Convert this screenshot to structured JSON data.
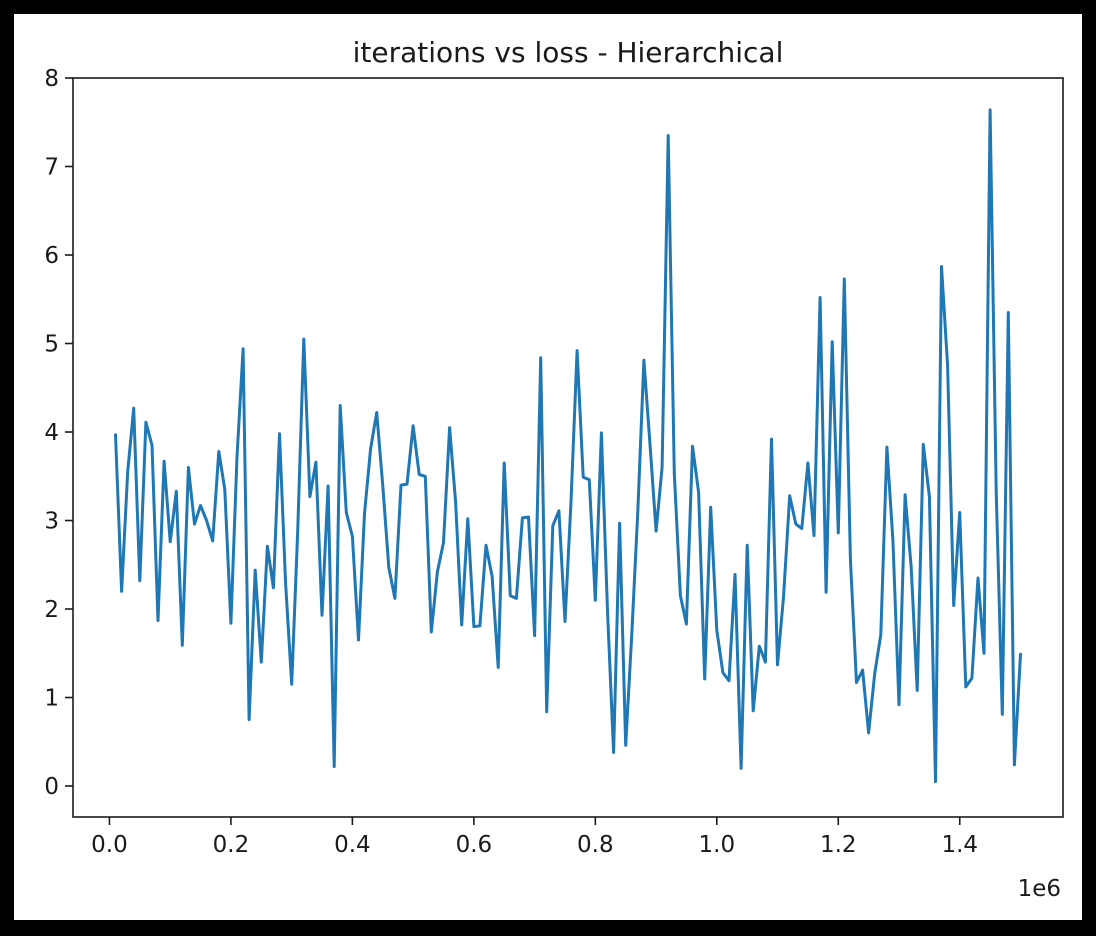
{
  "chart_data": {
    "type": "line",
    "title": "iterations vs loss - Hierarchical",
    "xlabel": "",
    "ylabel": "",
    "x_offset_label": "1e6",
    "xlim": [
      -60000,
      1570000
    ],
    "ylim": [
      -0.35,
      8.0
    ],
    "xticks": [
      0,
      200000,
      400000,
      600000,
      800000,
      1000000,
      1200000,
      1400000
    ],
    "xtick_labels": [
      "0.0",
      "0.2",
      "0.4",
      "0.6",
      "0.8",
      "1.0",
      "1.2",
      "1.4"
    ],
    "yticks": [
      0,
      1,
      2,
      3,
      4,
      5,
      6,
      7,
      8
    ],
    "ytick_labels": [
      "0",
      "1",
      "2",
      "3",
      "4",
      "5",
      "6",
      "7",
      "8"
    ],
    "grid": false,
    "legend": "none",
    "series_color": "#1f77b4",
    "series": [
      {
        "x": [
          10000,
          20000,
          30000,
          40000,
          50000,
          60000,
          70000,
          80000,
          90000,
          100000,
          110000,
          120000,
          130000,
          140000,
          150000,
          160000,
          170000,
          180000,
          190000,
          200000,
          210000,
          220000,
          230000,
          240000,
          250000,
          260000,
          270000,
          280000,
          290000,
          300000,
          310000,
          320000,
          330000,
          340000,
          350000,
          360000,
          370000,
          380000,
          390000,
          400000,
          410000,
          420000,
          430000,
          440000,
          450000,
          460000,
          470000,
          480000,
          490000,
          500000,
          510000,
          520000,
          530000,
          540000,
          550000,
          560000,
          570000,
          580000,
          590000,
          600000,
          610000,
          620000,
          630000,
          640000,
          650000,
          660000,
          670000,
          680000,
          690000,
          700000,
          710000,
          720000,
          730000,
          740000,
          750000,
          760000,
          770000,
          780000,
          790000,
          800000,
          810000,
          820000,
          830000,
          840000,
          850000,
          860000,
          870000,
          880000,
          890000,
          900000,
          910000,
          920000,
          930000,
          940000,
          950000,
          960000,
          970000,
          980000,
          990000,
          1000000,
          1010000,
          1020000,
          1030000,
          1040000,
          1050000,
          1060000,
          1070000,
          1080000,
          1090000,
          1100000,
          1110000,
          1120000,
          1130000,
          1140000,
          1150000,
          1160000,
          1170000,
          1180000,
          1190000,
          1200000,
          1210000,
          1220000,
          1230000,
          1240000,
          1250000,
          1260000,
          1270000,
          1280000,
          1290000,
          1300000,
          1310000,
          1320000,
          1330000,
          1340000,
          1350000,
          1360000,
          1370000,
          1380000,
          1390000,
          1400000,
          1410000,
          1420000,
          1430000,
          1440000,
          1450000,
          1460000,
          1470000,
          1480000,
          1490000,
          1500000
        ],
        "values": [
          3.97,
          2.2,
          3.55,
          4.27,
          2.32,
          4.11,
          3.85,
          1.87,
          3.67,
          2.76,
          3.33,
          1.59,
          3.6,
          2.96,
          3.17,
          3.0,
          2.77,
          3.78,
          3.35,
          1.84,
          3.72,
          4.94,
          0.75,
          2.44,
          1.4,
          2.71,
          2.24,
          3.98,
          2.29,
          1.15,
          2.88,
          5.05,
          3.27,
          3.66,
          1.93,
          3.39,
          0.22,
          4.3,
          3.09,
          2.82,
          1.65,
          3.08,
          3.81,
          4.22,
          3.39,
          2.47,
          2.12,
          3.4,
          3.41,
          4.07,
          3.52,
          3.5,
          1.74,
          2.42,
          2.75,
          4.05,
          3.21,
          1.82,
          3.02,
          1.8,
          1.81,
          2.72,
          2.37,
          1.34,
          3.65,
          2.15,
          2.12,
          3.03,
          3.04,
          1.7,
          4.84,
          0.84,
          2.94,
          3.11,
          1.86,
          3.21,
          4.92,
          3.49,
          3.46,
          2.1,
          3.99,
          1.98,
          0.38,
          2.97,
          0.46,
          1.72,
          3.1,
          4.81,
          3.86,
          2.88,
          3.6,
          7.35,
          3.53,
          2.15,
          1.83,
          3.84,
          3.32,
          1.21,
          3.15,
          1.76,
          1.28,
          1.19,
          2.39,
          0.2,
          2.72,
          0.85,
          1.58,
          1.4,
          3.92,
          1.37,
          2.15,
          3.28,
          2.96,
          2.91,
          3.65,
          2.83,
          5.52,
          2.19,
          5.02,
          2.86,
          5.73,
          2.56,
          1.17,
          1.31,
          0.6,
          1.27,
          1.71,
          3.83,
          2.78,
          0.92,
          3.29,
          2.47,
          1.08,
          3.86,
          3.27,
          0.05,
          5.87,
          4.75,
          2.04,
          3.09,
          1.12,
          1.22,
          2.35,
          1.5,
          7.64,
          3.33,
          0.81,
          5.35,
          0.24,
          1.49
        ]
      }
    ]
  }
}
